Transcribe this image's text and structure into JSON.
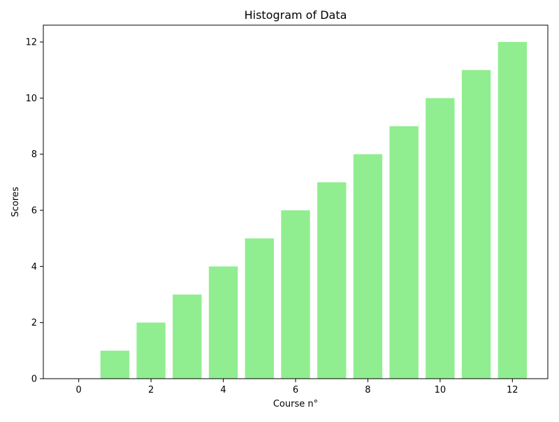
{
  "chart_data": {
    "type": "bar",
    "title": "Histogram of Data",
    "xlabel": "Course n°",
    "ylabel": "Scores",
    "x": [
      0,
      1,
      2,
      3,
      4,
      5,
      6,
      7,
      8,
      9,
      10,
      11,
      12
    ],
    "values": [
      0,
      1,
      2,
      3,
      4,
      5,
      6,
      7,
      8,
      9,
      10,
      11,
      12
    ],
    "xlim": [
      -0.98,
      12.98
    ],
    "ylim": [
      0,
      12.6
    ],
    "xticks": [
      "0",
      "2",
      "4",
      "6",
      "8",
      "10",
      "12"
    ],
    "yticks": [
      "0",
      "2",
      "4",
      "6",
      "8",
      "10",
      "12"
    ],
    "bar_color": "#90ee90",
    "grid": false,
    "legend": "none"
  }
}
